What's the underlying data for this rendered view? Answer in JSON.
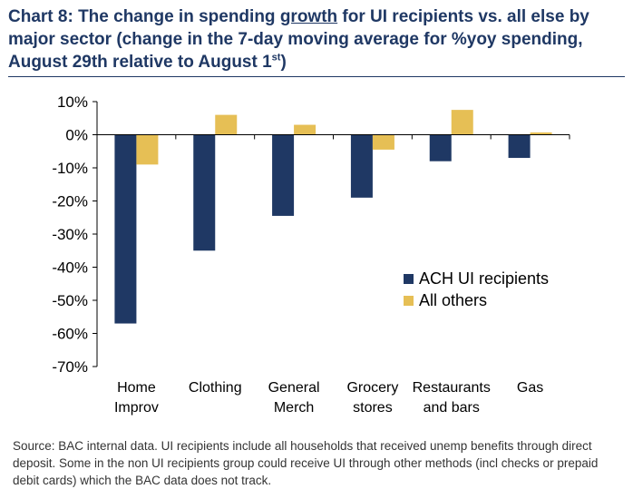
{
  "title": {
    "part1": "Chart 8: The change in spending ",
    "underlined": "growth",
    "part2": " for UI recipients vs. all else by major sector (change in the 7-day moving average for %yoy spending, August 29th relative to August 1",
    "superscript": "st",
    "part3": ")"
  },
  "source_note": "Source: BAC internal data. UI recipients include all households that received unemp benefits through direct deposit. Some in the non UI recipients group could receive UI through other methods (incl checks or prepaid debit cards) which the BAC data does not track.",
  "chart_data": {
    "type": "bar",
    "categories": [
      [
        "Home",
        "Improv"
      ],
      [
        "Clothing"
      ],
      [
        "General",
        "Merch"
      ],
      [
        "Grocery",
        "stores"
      ],
      [
        "Restaurants",
        "and bars"
      ],
      [
        "Gas"
      ]
    ],
    "series": [
      {
        "name": "ACH UI recipients",
        "color": "#1f3864",
        "values": [
          -57,
          -35,
          -24.5,
          -19,
          -8,
          -7
        ]
      },
      {
        "name": "All others",
        "color": "#e6bf55",
        "values": [
          -9,
          6,
          3,
          -4.5,
          7.5,
          0.7
        ]
      }
    ],
    "ylim": [
      -70,
      10
    ],
    "yticks": [
      10,
      0,
      -10,
      -20,
      -30,
      -40,
      -50,
      -60,
      -70
    ],
    "ytick_labels": [
      "10%",
      "0%",
      "-10%",
      "-20%",
      "-30%",
      "-40%",
      "-50%",
      "-60%",
      "-70%"
    ],
    "legend_position": "bottom-right",
    "grid": false
  }
}
